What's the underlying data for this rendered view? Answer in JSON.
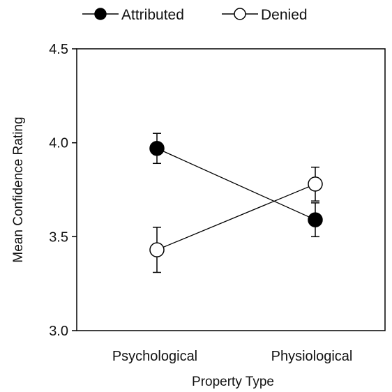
{
  "chart_data": {
    "type": "line",
    "title": "",
    "xlabel": "Property Type",
    "ylabel": "Mean Confidence Rating",
    "categories": [
      "Psychological",
      "Physiological"
    ],
    "ylim": [
      3.0,
      4.5
    ],
    "yticks": [
      "3.0",
      "3.5",
      "4.0",
      "4.5"
    ],
    "grid": false,
    "legend_position": "top",
    "series": [
      {
        "name": "Attributed",
        "marker": "filled-circle",
        "color": "#000000",
        "values": [
          3.97,
          3.59
        ],
        "error": [
          0.08,
          0.09
        ]
      },
      {
        "name": "Denied",
        "marker": "open-circle",
        "color": "#000000",
        "values": [
          3.43,
          3.78
        ],
        "error": [
          0.12,
          0.09
        ]
      }
    ]
  }
}
